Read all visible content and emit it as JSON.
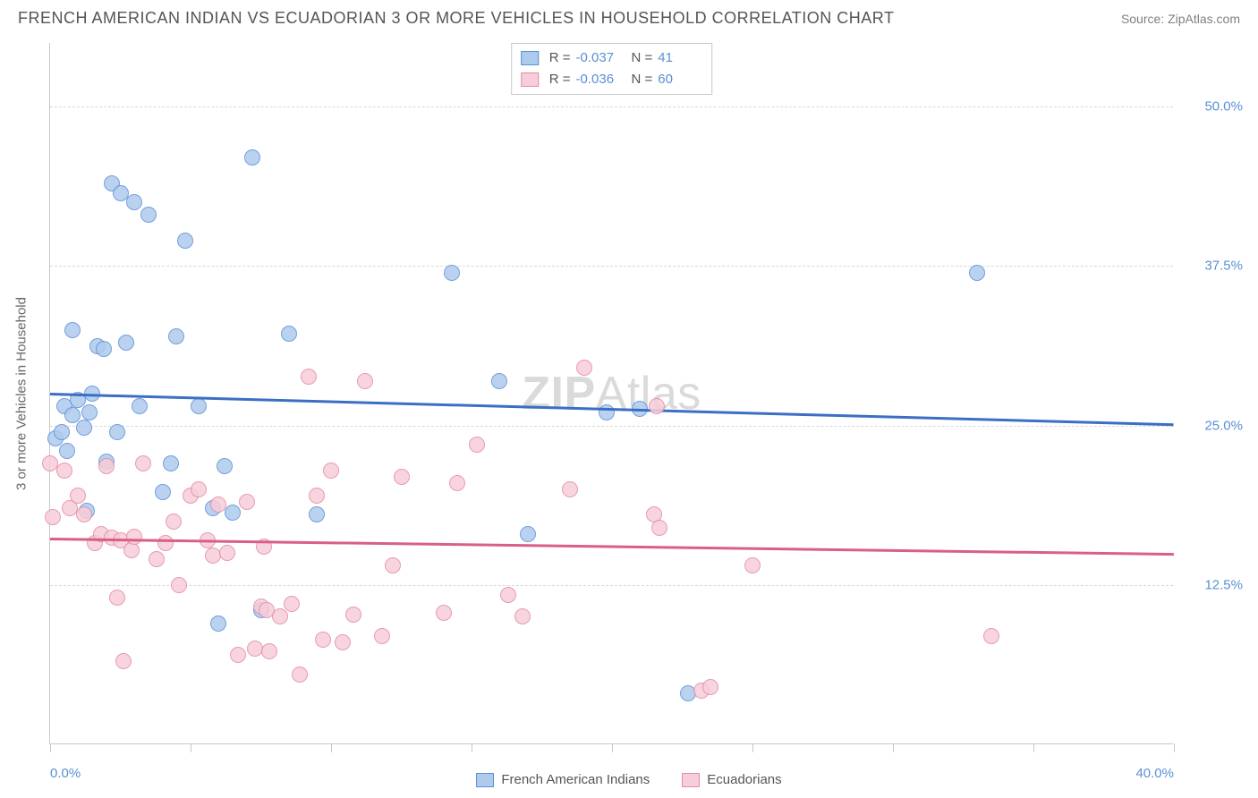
{
  "title": "FRENCH AMERICAN INDIAN VS ECUADORIAN 3 OR MORE VEHICLES IN HOUSEHOLD CORRELATION CHART",
  "source": "Source: ZipAtlas.com",
  "watermark_zip": "ZIP",
  "watermark_atlas": "Atlas",
  "chart": {
    "type": "scatter",
    "background_color": "#ffffff",
    "grid_color": "#d8d8d8",
    "axis_color": "#c8c8c8",
    "tick_label_color": "#5b8fd6",
    "tick_fontsize": 15,
    "title_fontsize": 18,
    "title_color": "#555555",
    "xlim": [
      0,
      40
    ],
    "ylim": [
      0,
      55
    ],
    "yticks": [
      12.5,
      25.0,
      37.5,
      50.0
    ],
    "ytick_labels": [
      "12.5%",
      "25.0%",
      "37.5%",
      "50.0%"
    ],
    "xticks": [
      0,
      5,
      10,
      15,
      20,
      25,
      30,
      35,
      40
    ],
    "xtick_labels_shown": {
      "0": "0.0%",
      "40": "40.0%"
    },
    "ylabel": "3 or more Vehicles in Household",
    "ylabel_color": "#666666",
    "marker_radius": 9,
    "marker_stroke_width": 1.5,
    "marker_fill_opacity": 0.35,
    "trend_line_width": 2.5
  },
  "series": [
    {
      "name": "French American Indians",
      "color_stroke": "#5b8fd6",
      "color_fill": "#aecbee",
      "trend_color": "#3a6fc4",
      "R": "-0.037",
      "N": "41",
      "trend": {
        "y_at_x0": 27.6,
        "y_at_x40": 25.2
      },
      "points": [
        [
          0.2,
          24.0
        ],
        [
          0.4,
          24.5
        ],
        [
          0.5,
          26.5
        ],
        [
          0.6,
          23.0
        ],
        [
          0.8,
          32.5
        ],
        [
          0.8,
          25.8
        ],
        [
          1.0,
          27.0
        ],
        [
          1.2,
          24.8
        ],
        [
          1.3,
          18.3
        ],
        [
          1.4,
          26.0
        ],
        [
          1.5,
          27.5
        ],
        [
          1.7,
          31.2
        ],
        [
          1.9,
          31.0
        ],
        [
          2.0,
          22.2
        ],
        [
          2.2,
          44.0
        ],
        [
          2.4,
          24.5
        ],
        [
          2.5,
          43.2
        ],
        [
          2.7,
          31.5
        ],
        [
          3.0,
          42.5
        ],
        [
          3.2,
          26.5
        ],
        [
          3.5,
          41.5
        ],
        [
          4.0,
          19.8
        ],
        [
          4.3,
          22.0
        ],
        [
          4.5,
          32.0
        ],
        [
          4.8,
          39.5
        ],
        [
          5.3,
          26.5
        ],
        [
          5.8,
          18.5
        ],
        [
          6.0,
          9.5
        ],
        [
          6.2,
          21.8
        ],
        [
          6.5,
          18.2
        ],
        [
          7.2,
          46.0
        ],
        [
          7.5,
          10.5
        ],
        [
          8.5,
          32.2
        ],
        [
          9.5,
          18.0
        ],
        [
          14.3,
          37.0
        ],
        [
          16.0,
          28.5
        ],
        [
          17.0,
          16.5
        ],
        [
          19.8,
          26.0
        ],
        [
          21.0,
          26.3
        ],
        [
          22.7,
          4.0
        ],
        [
          33.0,
          37.0
        ]
      ]
    },
    {
      "name": "Ecuadorians",
      "color_stroke": "#e28ba5",
      "color_fill": "#f7cdd9",
      "trend_color": "#d95f84",
      "R": "-0.036",
      "N": "60",
      "trend": {
        "y_at_x0": 16.2,
        "y_at_x40": 15.0
      },
      "points": [
        [
          0.0,
          22.0
        ],
        [
          0.1,
          17.8
        ],
        [
          0.5,
          21.5
        ],
        [
          0.7,
          18.5
        ],
        [
          1.0,
          19.5
        ],
        [
          1.2,
          18.0
        ],
        [
          1.6,
          15.8
        ],
        [
          1.8,
          16.5
        ],
        [
          2.0,
          21.8
        ],
        [
          2.2,
          16.2
        ],
        [
          2.4,
          11.5
        ],
        [
          2.5,
          16.0
        ],
        [
          2.6,
          6.5
        ],
        [
          2.9,
          15.2
        ],
        [
          3.0,
          16.3
        ],
        [
          3.3,
          22.0
        ],
        [
          3.8,
          14.5
        ],
        [
          4.1,
          15.8
        ],
        [
          4.4,
          17.5
        ],
        [
          4.6,
          12.5
        ],
        [
          5.0,
          19.5
        ],
        [
          5.3,
          20.0
        ],
        [
          5.6,
          16.0
        ],
        [
          5.8,
          14.8
        ],
        [
          6.0,
          18.8
        ],
        [
          6.3,
          15.0
        ],
        [
          6.7,
          7.0
        ],
        [
          7.0,
          19.0
        ],
        [
          7.3,
          7.5
        ],
        [
          7.5,
          10.8
        ],
        [
          7.6,
          15.5
        ],
        [
          7.7,
          10.5
        ],
        [
          7.8,
          7.3
        ],
        [
          8.2,
          10.0
        ],
        [
          8.6,
          11.0
        ],
        [
          8.9,
          5.5
        ],
        [
          9.2,
          28.8
        ],
        [
          9.5,
          19.5
        ],
        [
          9.7,
          8.2
        ],
        [
          10.0,
          21.5
        ],
        [
          10.4,
          8.0
        ],
        [
          10.8,
          10.2
        ],
        [
          11.2,
          28.5
        ],
        [
          11.8,
          8.5
        ],
        [
          12.2,
          14.0
        ],
        [
          12.5,
          21.0
        ],
        [
          14.0,
          10.3
        ],
        [
          14.5,
          20.5
        ],
        [
          15.2,
          23.5
        ],
        [
          16.3,
          11.7
        ],
        [
          16.8,
          10.0
        ],
        [
          18.5,
          20.0
        ],
        [
          19.0,
          29.5
        ],
        [
          21.5,
          18.0
        ],
        [
          21.6,
          26.5
        ],
        [
          21.7,
          17.0
        ],
        [
          23.2,
          4.2
        ],
        [
          23.5,
          4.5
        ],
        [
          25.0,
          14.0
        ],
        [
          33.5,
          8.5
        ]
      ]
    }
  ],
  "legend_top_layout": "top-center-box",
  "legend_bottom_layout": "bottom-center"
}
